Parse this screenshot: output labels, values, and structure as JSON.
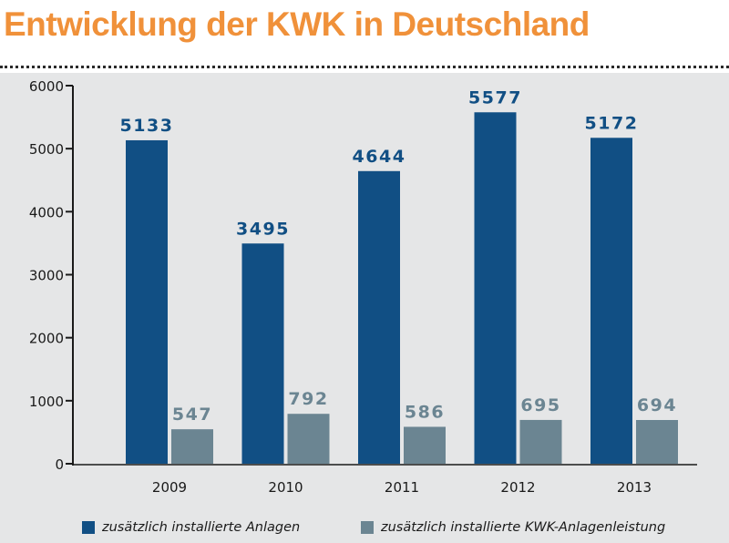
{
  "title": "Entwicklung der KWK in Deutschland",
  "colors": {
    "title": "#f0913a",
    "series_1": "#114f84",
    "series_2": "#6b8592",
    "panel": "#e5e6e7"
  },
  "chart_data": {
    "type": "bar",
    "title": "Entwicklung der KWK in Deutschland",
    "xlabel": "",
    "ylabel": "",
    "categories": [
      "2009",
      "2010",
      "2011",
      "2012",
      "2013"
    ],
    "series": [
      {
        "name": "zusätzlich installierte Anlagen",
        "values": [
          5133,
          3495,
          4644,
          5577,
          5172
        ]
      },
      {
        "name": "zusätzlich installierte KWK-Anlagenleistung",
        "values": [
          547,
          792,
          586,
          695,
          694
        ]
      }
    ],
    "ylim": [
      0,
      6000
    ],
    "yticks": [
      0,
      1000,
      2000,
      3000,
      4000,
      5000,
      6000
    ],
    "grid": false,
    "legend": "bottom"
  }
}
